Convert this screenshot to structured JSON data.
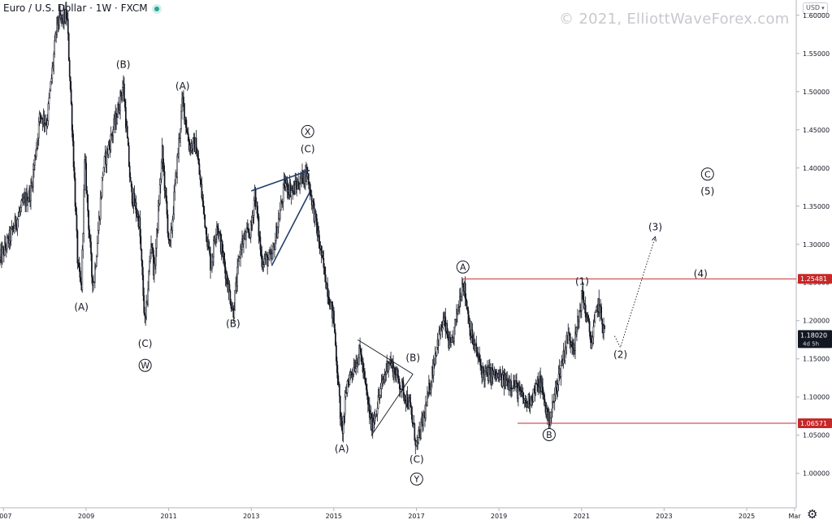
{
  "header": {
    "title": "Euro / U.S. Dollar · 1W · FXCM",
    "watermark": "© 2021, ElliottWaveForex.com",
    "currency": "USD"
  },
  "icons": {
    "status": "live-dot-icon",
    "settings": "gear-icon"
  },
  "colors": {
    "price": "#131722",
    "level_line": "#c62828",
    "wedge": "#1f3d6b",
    "grid_text": "#131722"
  },
  "chart_data": {
    "type": "candlestick",
    "title": "Euro / U.S. Dollar · 1W · FXCM",
    "x_range": [
      "2006-12-01",
      "2026-03-15"
    ],
    "ylim": [
      0.955,
      1.62
    ],
    "y_ticks": [
      "1.00000",
      "1.05000",
      "1.10000",
      "1.15000",
      "1.20000",
      "1.25000",
      "1.30000",
      "1.35000",
      "1.40000",
      "1.45000",
      "1.50000",
      "1.55000",
      "1.60000"
    ],
    "x_ticks": [
      {
        "label": "2007",
        "date": "2007-01-01"
      },
      {
        "label": "2009",
        "date": "2009-01-01"
      },
      {
        "label": "2011",
        "date": "2011-01-01"
      },
      {
        "label": "2013",
        "date": "2013-01-01"
      },
      {
        "label": "2015",
        "date": "2015-01-01"
      },
      {
        "label": "2017",
        "date": "2017-01-01"
      },
      {
        "label": "2019",
        "date": "2019-01-01"
      },
      {
        "label": "2021",
        "date": "2021-01-01"
      },
      {
        "label": "2023",
        "date": "2023-01-01"
      },
      {
        "label": "2025",
        "date": "2025-01-01"
      },
      {
        "label": "Mar",
        "date": "2026-03-01"
      }
    ],
    "price_path": [
      [
        "2006-12-01",
        1.28
      ],
      [
        "2007-03-01",
        1.31
      ],
      [
        "2007-06-15",
        1.35
      ],
      [
        "2007-09-01",
        1.37
      ],
      [
        "2007-11-20",
        1.47
      ],
      [
        "2008-01-20",
        1.46
      ],
      [
        "2008-04-20",
        1.59
      ],
      [
        "2008-07-15",
        1.6
      ],
      [
        "2008-09-01",
        1.45
      ],
      [
        "2008-10-20",
        1.27
      ],
      [
        "2008-11-20",
        1.24
      ],
      [
        "2008-12-20",
        1.41
      ],
      [
        "2009-02-20",
        1.26
      ],
      [
        "2009-03-10",
        1.25
      ],
      [
        "2009-06-01",
        1.4
      ],
      [
        "2009-10-01",
        1.47
      ],
      [
        "2009-11-25",
        1.51
      ],
      [
        "2010-02-01",
        1.37
      ],
      [
        "2010-04-15",
        1.33
      ],
      [
        "2010-06-07",
        1.19
      ],
      [
        "2010-08-01",
        1.31
      ],
      [
        "2010-08-25",
        1.26
      ],
      [
        "2010-11-05",
        1.42
      ],
      [
        "2011-01-10",
        1.29
      ],
      [
        "2011-03-01",
        1.38
      ],
      [
        "2011-05-04",
        1.49
      ],
      [
        "2011-07-01",
        1.43
      ],
      [
        "2011-09-01",
        1.43
      ],
      [
        "2011-11-01",
        1.35
      ],
      [
        "2012-01-10",
        1.27
      ],
      [
        "2012-03-01",
        1.33
      ],
      [
        "2012-07-24",
        1.21
      ],
      [
        "2012-10-01",
        1.3
      ],
      [
        "2013-01-01",
        1.32
      ],
      [
        "2013-02-01",
        1.37
      ],
      [
        "2013-04-01",
        1.28
      ],
      [
        "2013-07-01",
        1.28
      ],
      [
        "2013-10-25",
        1.38
      ],
      [
        "2014-01-01",
        1.37
      ],
      [
        "2014-05-08",
        1.395
      ],
      [
        "2014-07-01",
        1.35
      ],
      [
        "2014-10-01",
        1.27
      ],
      [
        "2015-01-01",
        1.2
      ],
      [
        "2015-03-13",
        1.05
      ],
      [
        "2015-05-01",
        1.12
      ],
      [
        "2015-08-24",
        1.16
      ],
      [
        "2015-10-01",
        1.12
      ],
      [
        "2015-12-01",
        1.06
      ],
      [
        "2016-05-01",
        1.15
      ],
      [
        "2016-08-01",
        1.12
      ],
      [
        "2016-11-01",
        1.09
      ],
      [
        "2017-01-03",
        1.035
      ],
      [
        "2017-04-01",
        1.09
      ],
      [
        "2017-07-01",
        1.17
      ],
      [
        "2017-09-01",
        1.2
      ],
      [
        "2017-11-01",
        1.16
      ],
      [
        "2018-02-16",
        1.255
      ],
      [
        "2018-05-01",
        1.18
      ],
      [
        "2018-08-15",
        1.13
      ],
      [
        "2018-11-01",
        1.13
      ],
      [
        "2019-03-01",
        1.12
      ],
      [
        "2019-05-01",
        1.12
      ],
      [
        "2019-09-01",
        1.09
      ],
      [
        "2019-12-31",
        1.12
      ],
      [
        "2020-03-20",
        1.065
      ],
      [
        "2020-06-01",
        1.12
      ],
      [
        "2020-09-01",
        1.18
      ],
      [
        "2020-11-01",
        1.17
      ],
      [
        "2021-01-06",
        1.235
      ],
      [
        "2021-03-31",
        1.17
      ],
      [
        "2021-05-25",
        1.225
      ],
      [
        "2021-07-28",
        1.18
      ]
    ],
    "projection": [
      [
        "2021-10-20",
        1.18
      ],
      [
        "2021-12-10",
        1.165
      ],
      [
        "2022-10-15",
        1.31
      ]
    ],
    "triangle_lines": [
      [
        [
          "2015-08-01",
          1.175
        ],
        [
          "2016-12-01",
          1.13
        ]
      ],
      [
        [
          "2015-12-01",
          1.05
        ],
        [
          "2016-12-01",
          1.13
        ]
      ]
    ],
    "wedge_lines": [
      [
        [
          "2013-01-01",
          1.37
        ],
        [
          "2014-06-01",
          1.397
        ]
      ],
      [
        [
          "2013-07-01",
          1.272
        ],
        [
          "2014-06-01",
          1.368
        ]
      ]
    ],
    "levels": [
      {
        "value": 1.25481,
        "label": "1.25481",
        "from": "2018-02-10"
      },
      {
        "value": 1.06571,
        "label": "1.06571",
        "from": "2019-06-15"
      }
    ],
    "last_price": {
      "value": 1.1802,
      "label": "1.18020",
      "countdown": "4d 5h"
    },
    "wave_labels": [
      {
        "text": "(A)",
        "date": "2008-11-20",
        "price": 1.2185,
        "circled": false
      },
      {
        "text": "(B)",
        "date": "2009-11-25",
        "price": 1.5357,
        "circled": false
      },
      {
        "text": "(C)",
        "date": "2010-06-07",
        "price": 1.1705,
        "circled": false
      },
      {
        "text": "W",
        "date": "2010-06-07",
        "price": 1.1415,
        "circled": true
      },
      {
        "text": "(A)",
        "date": "2011-05-04",
        "price": 1.5078,
        "circled": false
      },
      {
        "text": "(B)",
        "date": "2012-07-24",
        "price": 1.1966,
        "circled": false
      },
      {
        "text": "(C)",
        "date": "2014-05-15",
        "price": 1.4252,
        "circled": false
      },
      {
        "text": "X",
        "date": "2014-05-15",
        "price": 1.4477,
        "circled": true
      },
      {
        "text": "(A)",
        "date": "2015-03-13",
        "price": 1.0325,
        "circled": false
      },
      {
        "text": "(B)",
        "date": "2016-12-01",
        "price": 1.1517,
        "circled": false
      },
      {
        "text": "(C)",
        "date": "2017-01-03",
        "price": 1.0187,
        "circled": false
      },
      {
        "text": "Y",
        "date": "2017-01-03",
        "price": 0.9926,
        "circled": true
      },
      {
        "text": "A",
        "date": "2018-02-16",
        "price": 1.2703,
        "circled": true
      },
      {
        "text": "B",
        "date": "2020-03-20",
        "price": 1.0508,
        "circled": true
      },
      {
        "text": "(1)",
        "date": "2021-01-06",
        "price": 1.2518,
        "circled": false
      },
      {
        "text": "(2)",
        "date": "2021-12-10",
        "price": 1.1561,
        "circled": false
      },
      {
        "text": "(3)",
        "date": "2022-10-15",
        "price": 1.323,
        "circled": false
      },
      {
        "text": "(4)",
        "date": "2023-11-20",
        "price": 1.2622,
        "circled": false
      },
      {
        "text": "C",
        "date": "2024-01-20",
        "price": 1.392,
        "circled": true
      },
      {
        "text": "(5)",
        "date": "2024-01-20",
        "price": 1.3697,
        "circled": false
      }
    ]
  }
}
